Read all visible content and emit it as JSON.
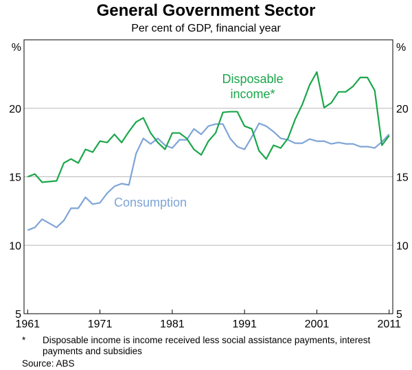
{
  "chart_data": {
    "type": "line",
    "title": "General Government Sector",
    "subtitle": "Per cent of GDP, financial year",
    "ylabel_left": "%",
    "ylabel_right": "%",
    "ylim": [
      5,
      25
    ],
    "yticks": [
      5,
      10,
      15,
      20
    ],
    "xlim": [
      1960.5,
      2011.5
    ],
    "xticks": [
      1961,
      1971,
      1981,
      1991,
      2001,
      2011
    ],
    "x": [
      1961,
      1962,
      1963,
      1964,
      1965,
      1966,
      1967,
      1968,
      1969,
      1970,
      1971,
      1972,
      1973,
      1974,
      1975,
      1976,
      1977,
      1978,
      1979,
      1980,
      1981,
      1982,
      1983,
      1984,
      1985,
      1986,
      1987,
      1988,
      1989,
      1990,
      1991,
      1992,
      1993,
      1994,
      1995,
      1996,
      1997,
      1998,
      1999,
      2000,
      2001,
      2002,
      2003,
      2004,
      2005,
      2006,
      2007,
      2008,
      2009,
      2010,
      2011
    ],
    "series": [
      {
        "name": "Disposable income*",
        "label": "Disposable\nincome*",
        "color": "#1aa64a",
        "values": [
          15.0,
          15.2,
          14.6,
          14.65,
          14.7,
          16.0,
          16.3,
          16.0,
          17.0,
          16.8,
          17.6,
          17.5,
          18.1,
          17.5,
          18.3,
          19.0,
          19.3,
          18.2,
          17.5,
          17.0,
          18.2,
          18.2,
          17.8,
          17.0,
          16.6,
          17.6,
          18.2,
          19.7,
          19.75,
          19.75,
          18.7,
          18.5,
          16.9,
          16.3,
          17.3,
          17.1,
          17.8,
          19.2,
          20.3,
          21.7,
          22.65,
          20.05,
          20.4,
          21.2,
          21.2,
          21.6,
          22.25,
          22.25,
          21.3,
          17.3,
          18.0
        ]
      },
      {
        "name": "Consumption",
        "label": "Consumption",
        "color": "#7ea4d6",
        "values": [
          11.1,
          11.3,
          11.9,
          11.6,
          11.3,
          11.8,
          12.7,
          12.7,
          13.5,
          13.0,
          13.1,
          13.8,
          14.3,
          14.5,
          14.4,
          16.7,
          17.8,
          17.4,
          17.8,
          17.3,
          17.1,
          17.7,
          17.7,
          18.5,
          18.1,
          18.7,
          18.85,
          18.85,
          17.8,
          17.2,
          17.0,
          17.9,
          18.9,
          18.7,
          18.3,
          17.8,
          17.7,
          17.45,
          17.45,
          17.75,
          17.6,
          17.6,
          17.4,
          17.5,
          17.4,
          17.4,
          17.2,
          17.2,
          17.1,
          17.55,
          18.1
        ]
      }
    ]
  },
  "footnote": {
    "marker": "*",
    "text": "Disposable income is income received less social assistance payments, interest payments and subsidies"
  },
  "source": "Source: ABS"
}
